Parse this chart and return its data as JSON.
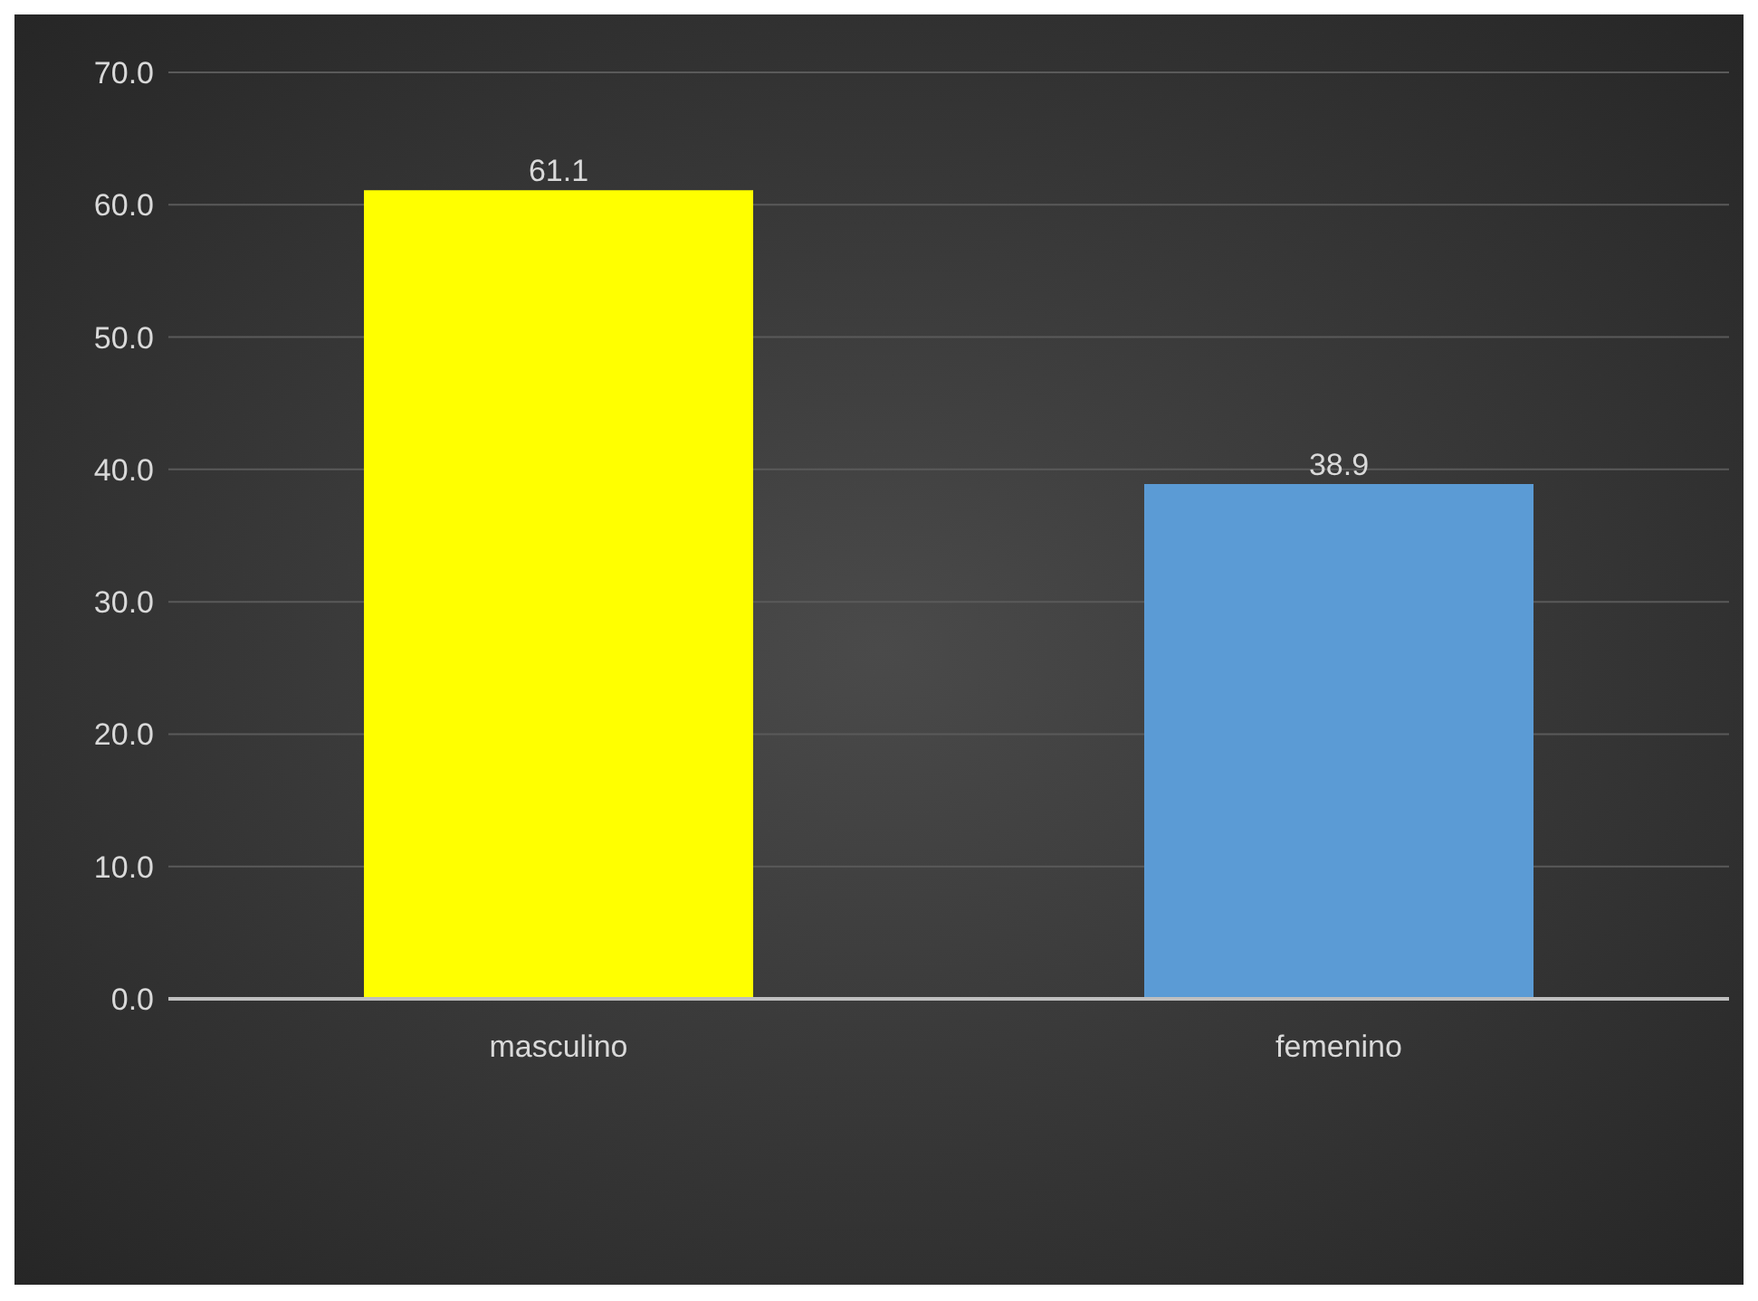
{
  "chart_data": {
    "type": "bar",
    "categories": [
      "masculino",
      "femenino"
    ],
    "values": [
      61.1,
      38.9
    ],
    "colors": [
      "#ffff00",
      "#5b9bd5"
    ],
    "ylim": [
      0,
      70
    ],
    "yticks": [
      {
        "value": 0,
        "label": "0.0"
      },
      {
        "value": 10,
        "label": "10.0"
      },
      {
        "value": 20,
        "label": "20.0"
      },
      {
        "value": 30,
        "label": "30.0"
      },
      {
        "value": 40,
        "label": "40.0"
      },
      {
        "value": 50,
        "label": "50.0"
      },
      {
        "value": 60,
        "label": "60.0"
      },
      {
        "value": 70,
        "label": "70.0"
      }
    ],
    "grid": "y",
    "data_labels": true
  }
}
